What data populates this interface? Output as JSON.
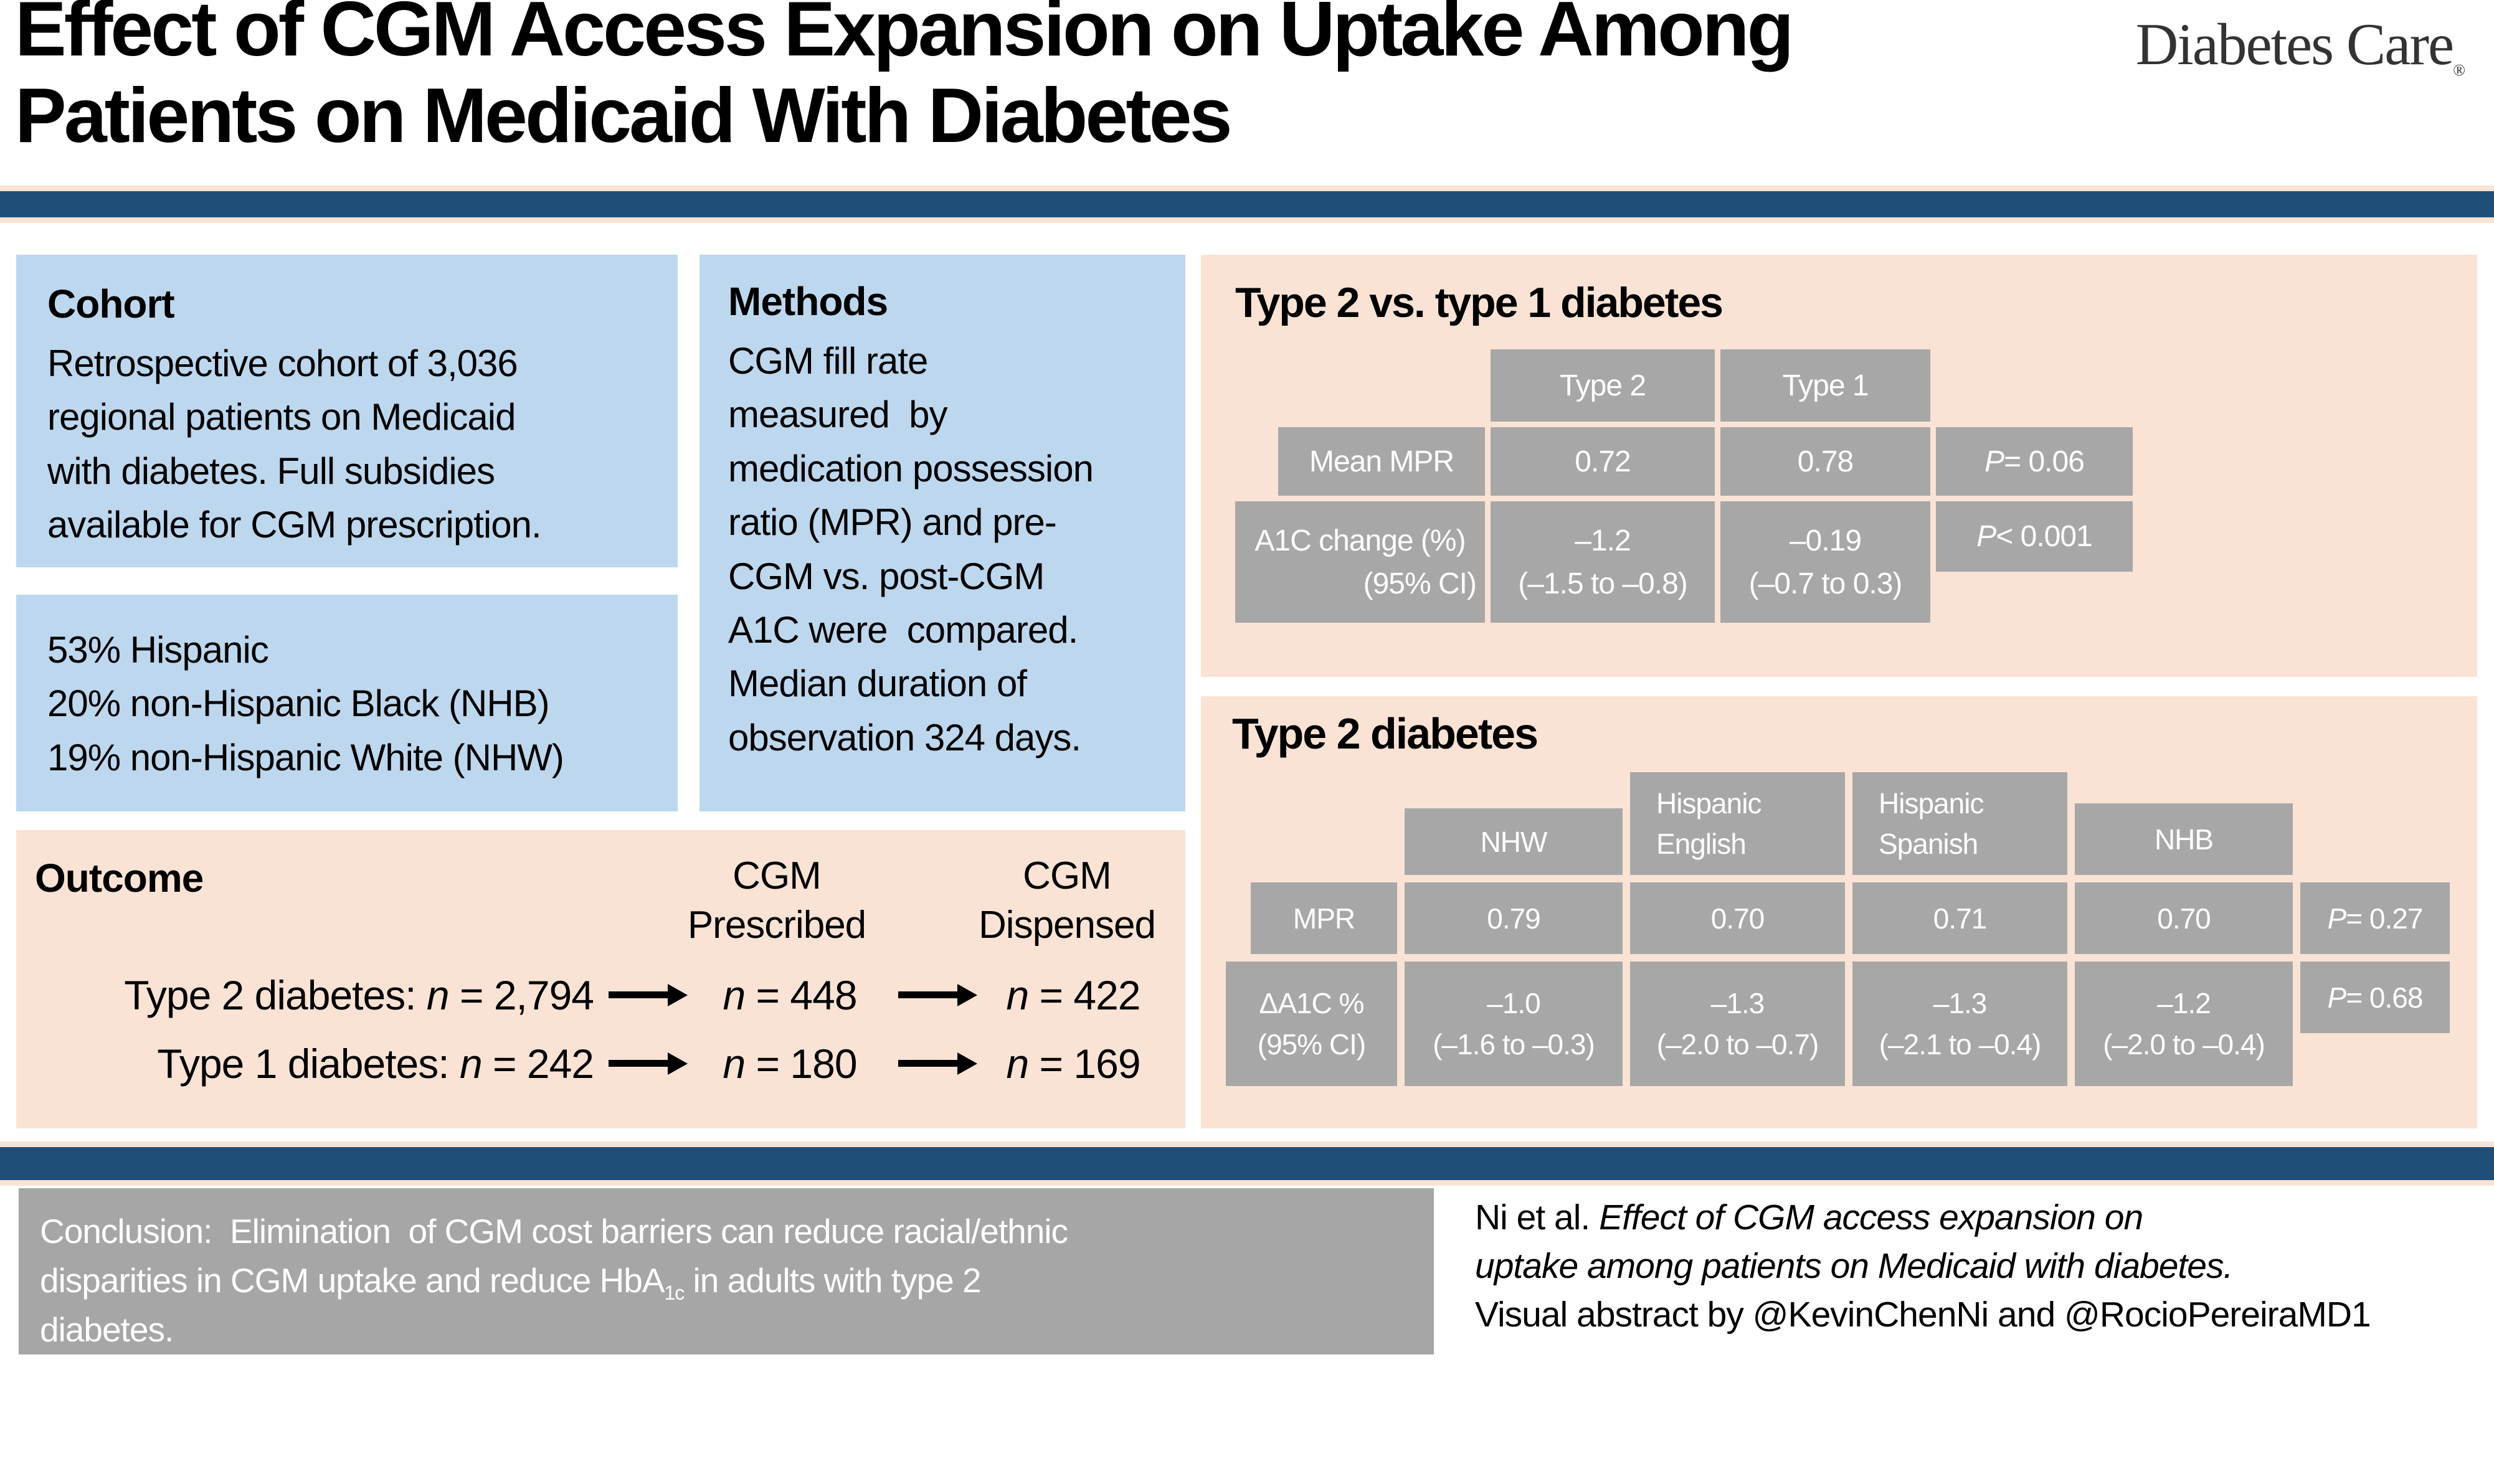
{
  "colors": {
    "navy": "#1F4E79",
    "light_blue": "#BDD7EE",
    "peach": "#FAE3D4",
    "cell_gray": "#A7A7A7",
    "conclusion_gray": "#A6A6A6"
  },
  "header": {
    "title_line1": "Effect of CGM Access Expansion on Uptake Among",
    "title_line2": "Patients on Medicaid With Diabetes",
    "journal_logo": "Diabetes Care",
    "registered_mark": "®"
  },
  "cohort": {
    "heading": "Cohort",
    "body": "Retrospective cohort of 3,036\nregional patients on Medicaid\nwith diabetes. Full subsidies\navailable for CGM prescription."
  },
  "demographics": {
    "body": "53% Hispanic\n20% non-Hispanic Black (NHB)\n19% non-Hispanic White (NHW)"
  },
  "methods": {
    "heading": "Methods",
    "body": "CGM fill rate\nmeasured  by\nmedication possession\nratio (MPR) and pre-\nCGM vs. post-CGM\nA1C were  compared.\nMedian duration of\nobservation 324 days."
  },
  "outcome": {
    "heading": "Outcome",
    "col_header_prescribed": "CGM\nPrescribed",
    "col_header_dispensed": "CGM\nDispensed",
    "n_symbol": "n",
    "rows": [
      {
        "label": "Type 2 diabetes: ",
        "start": " = 2,794",
        "prescribed": " = 448",
        "dispensed": " = 422"
      },
      {
        "label": "Type 1 diabetes: ",
        "start": " = 242",
        "prescribed": " = 180",
        "dispensed": " = 169"
      }
    ]
  },
  "table1": {
    "title": "Type 2 vs. type 1 diabetes",
    "col_headers": [
      "Type 2",
      "Type 1"
    ],
    "row1": {
      "label": "Mean MPR",
      "type2": "0.72",
      "type1": "0.78",
      "p_symbol": "P",
      "p_value": " = 0.06"
    },
    "row2": {
      "label_line1": "A1C change (%)",
      "label_line2": "(95% CI)",
      "type2_line1": "–1.2",
      "type2_line2": "(–1.5 to –0.8)",
      "type1_line1": "–0.19",
      "type1_line2": "(–0.7 to 0.3)",
      "p_symbol": "P",
      "p_value": " < 0.001"
    }
  },
  "table2": {
    "title": "Type 2 diabetes",
    "col_headers": {
      "nhw": "NHW",
      "hispanic_english": "Hispanic\nEnglish",
      "hispanic_spanish": "Hispanic\nSpanish",
      "nhb": "NHB"
    },
    "mpr_row": {
      "label": "MPR",
      "values": [
        "0.79",
        "0.70",
        "0.71",
        "0.70"
      ],
      "p_symbol": "P",
      "p_value": " = 0.27"
    },
    "a1c_row": {
      "label_line1": "ΔA1C %",
      "label_line2": "(95% CI)",
      "values_line1": [
        "–1.0",
        "–1.3",
        "–1.3",
        "–1.2"
      ],
      "values_line2": [
        "(–1.6 to –0.3)",
        "(–2.0 to –0.7)",
        "(–2.1 to –0.4)",
        "(–2.0 to –0.4)"
      ],
      "p_symbol": "P",
      "p_value": " = 0.68"
    }
  },
  "conclusion": {
    "text_before_sub": "Conclusion:  Elimination  of CGM cost barriers can reduce racial/ethnic\ndisparities in CGM uptake and reduce HbA",
    "subscript": "1c",
    "text_after_sub": " in adults with type 2\ndiabetes."
  },
  "citation": {
    "line1_prefix": "Ni et al. ",
    "line1_italic": "Effect of CGM access expansion on",
    "line2_italic": "uptake among patients on Medicaid with diabetes.",
    "line3": "Visual abstract by @KevinChenNi and @RocioPereiraMD1"
  }
}
